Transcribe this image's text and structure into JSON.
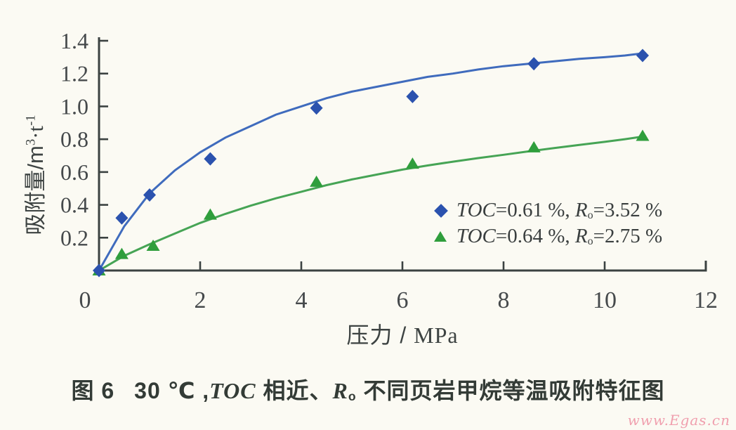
{
  "chart_data": {
    "type": "scatter",
    "title": "",
    "xlabel": "压力 / MPa",
    "ylabel": "吸附量/m3·t-1",
    "xlim": [
      0,
      12
    ],
    "ylim": [
      0,
      1.4
    ],
    "grid": false,
    "legend_position": "right-middle",
    "axis_color": "#3b4241",
    "tick_label_color": "#45494b",
    "x_ticks": [
      0,
      2,
      4,
      6,
      8,
      10,
      12
    ],
    "x_tick_labels": [
      "0",
      "2",
      "4",
      "6",
      "8",
      "10",
      "12"
    ],
    "y_ticks": [
      0.2,
      0.4,
      0.6,
      0.8,
      1.0,
      1.2,
      1.4
    ],
    "y_tick_labels": [
      "0.2",
      "0.4",
      "0.6",
      "0.8",
      "1.0",
      "1.2",
      "1.4"
    ],
    "series": [
      {
        "name": "TOC=0.61 %, Ro=3.52 %",
        "marker": "diamond",
        "marker_color": "#2b52ae",
        "line_color": "#3f6bbd",
        "points": [
          [
            0,
            0
          ],
          [
            0.45,
            0.32
          ],
          [
            1.0,
            0.46
          ],
          [
            2.2,
            0.68
          ],
          [
            4.3,
            0.99
          ],
          [
            6.2,
            1.06
          ],
          [
            8.6,
            1.26
          ],
          [
            10.75,
            1.31
          ]
        ],
        "curve": [
          [
            0,
            0
          ],
          [
            0.5,
            0.27
          ],
          [
            1,
            0.47
          ],
          [
            1.5,
            0.61
          ],
          [
            2,
            0.72
          ],
          [
            2.5,
            0.81
          ],
          [
            3,
            0.88
          ],
          [
            3.5,
            0.95
          ],
          [
            4,
            1.0
          ],
          [
            4.5,
            1.05
          ],
          [
            5,
            1.09
          ],
          [
            5.5,
            1.12
          ],
          [
            6,
            1.15
          ],
          [
            6.5,
            1.18
          ],
          [
            7,
            1.2
          ],
          [
            7.5,
            1.225
          ],
          [
            8,
            1.245
          ],
          [
            8.5,
            1.26
          ],
          [
            9,
            1.275
          ],
          [
            9.5,
            1.29
          ],
          [
            10,
            1.3
          ],
          [
            10.4,
            1.31
          ],
          [
            10.8,
            1.325
          ]
        ]
      },
      {
        "name": "TOC=0.64 %, Ro=2.75 %",
        "marker": "triangle",
        "marker_color": "#2f9e3c",
        "line_color": "#46a455",
        "points": [
          [
            0,
            0
          ],
          [
            0.45,
            0.1
          ],
          [
            1.07,
            0.15
          ],
          [
            2.2,
            0.34
          ],
          [
            4.3,
            0.54
          ],
          [
            6.2,
            0.65
          ],
          [
            8.6,
            0.75
          ],
          [
            10.75,
            0.82
          ]
        ],
        "curve": [
          [
            0,
            0
          ],
          [
            0.5,
            0.09
          ],
          [
            1,
            0.16
          ],
          [
            1.5,
            0.225
          ],
          [
            2,
            0.29
          ],
          [
            2.5,
            0.345
          ],
          [
            3,
            0.395
          ],
          [
            3.5,
            0.44
          ],
          [
            4,
            0.48
          ],
          [
            4.5,
            0.52
          ],
          [
            5,
            0.555
          ],
          [
            5.5,
            0.585
          ],
          [
            6,
            0.615
          ],
          [
            6.5,
            0.64
          ],
          [
            7,
            0.663
          ],
          [
            7.5,
            0.685
          ],
          [
            8,
            0.705
          ],
          [
            8.5,
            0.726
          ],
          [
            9,
            0.746
          ],
          [
            9.5,
            0.765
          ],
          [
            10,
            0.784
          ],
          [
            10.4,
            0.8
          ],
          [
            10.8,
            0.818
          ]
        ]
      }
    ]
  },
  "y_axis_title": {
    "part1": "吸附量/m",
    "sup1": "3",
    "part2": "·t",
    "sup2": "-1"
  },
  "x_axis_title": {
    "part1": "压力 / ",
    "part2": "MPa"
  },
  "legend": {
    "items": [
      {
        "toc": "TOC",
        "eq1": "=0.61 %, ",
        "r": "R",
        "rsub": "o",
        "eq2": "=3.52 %"
      },
      {
        "toc": "TOC",
        "eq1": "=0.64 %, ",
        "r": "R",
        "rsub": "o",
        "eq2": "=2.75 %"
      }
    ]
  },
  "caption": {
    "fig_label": "图 6",
    "part1": "30 ℃ ,",
    "toc": "TOC",
    "part2": " 相近、",
    "r": "R",
    "rsub": "o",
    "part3": " 不同页岩甲烷等温吸附特征图"
  },
  "watermark": {
    "text": "www.Egas.cn"
  }
}
